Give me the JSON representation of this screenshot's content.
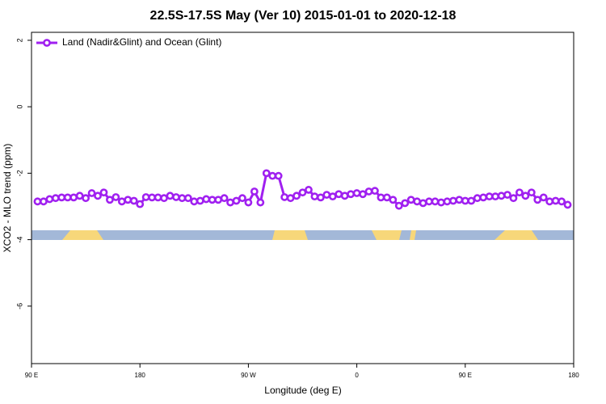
{
  "chart_data": {
    "type": "line",
    "title": "22.5S-17.5S May (Ver 10)   2015-01-01 to 2020-12-18",
    "x_label": "Longitude (deg E)",
    "y_label": "XCO2 - MLO trend (ppm)",
    "x": [
      95,
      100,
      105,
      110,
      115,
      120,
      125,
      130,
      135,
      140,
      145,
      150,
      155,
      160,
      165,
      170,
      175,
      180,
      185,
      190,
      195,
      200,
      205,
      210,
      215,
      220,
      225,
      230,
      235,
      240,
      245,
      250,
      255,
      260,
      265,
      270,
      275,
      280,
      285,
      290,
      295,
      300,
      305,
      310,
      315,
      320,
      325,
      330,
      335,
      340,
      345,
      350,
      355,
      360,
      365,
      370,
      375,
      380,
      385,
      390,
      395,
      400,
      405,
      410,
      415,
      420,
      425,
      430,
      435,
      440,
      445,
      450,
      455,
      460,
      465,
      470,
      475,
      480,
      485,
      490,
      495,
      500,
      505,
      510,
      515,
      520,
      525,
      530,
      535
    ],
    "series": [
      {
        "name": "Land (Nadir&Glint) and Ocean (Glint)",
        "color": "#a020f0",
        "values": [
          -2.85,
          -2.85,
          -2.78,
          -2.75,
          -2.73,
          -2.73,
          -2.73,
          -2.68,
          -2.75,
          -2.6,
          -2.68,
          -2.58,
          -2.8,
          -2.72,
          -2.85,
          -2.8,
          -2.83,
          -2.93,
          -2.72,
          -2.73,
          -2.73,
          -2.75,
          -2.68,
          -2.72,
          -2.75,
          -2.75,
          -2.85,
          -2.83,
          -2.78,
          -2.8,
          -2.8,
          -2.75,
          -2.88,
          -2.83,
          -2.75,
          -2.88,
          -2.55,
          -2.88,
          -2.0,
          -2.08,
          -2.08,
          -2.72,
          -2.75,
          -2.68,
          -2.58,
          -2.5,
          -2.7,
          -2.73,
          -2.65,
          -2.7,
          -2.63,
          -2.68,
          -2.63,
          -2.6,
          -2.63,
          -2.55,
          -2.53,
          -2.73,
          -2.73,
          -2.8,
          -2.98,
          -2.9,
          -2.8,
          -2.85,
          -2.9,
          -2.85,
          -2.85,
          -2.88,
          -2.85,
          -2.83,
          -2.8,
          -2.83,
          -2.83,
          -2.75,
          -2.73,
          -2.7,
          -2.7,
          -2.68,
          -2.65,
          -2.75,
          -2.58,
          -2.68,
          -2.58,
          -2.8,
          -2.73,
          -2.85,
          -2.83,
          -2.85,
          -2.95
        ]
      }
    ],
    "xlim": [
      90,
      540
    ],
    "xticks": [
      {
        "value": 90,
        "label": "90 E"
      },
      180,
      {
        "value": 270,
        "label": "90 W"
      },
      {
        "value": 360,
        "label": "0"
      },
      {
        "value": 450,
        "label": "90 E"
      },
      {
        "value": 540,
        "label": "180"
      }
    ],
    "ylim": [
      -7.73,
      2.24
    ],
    "yticks": [
      2,
      0,
      -2,
      -4,
      -6
    ],
    "legend": "top-left"
  }
}
